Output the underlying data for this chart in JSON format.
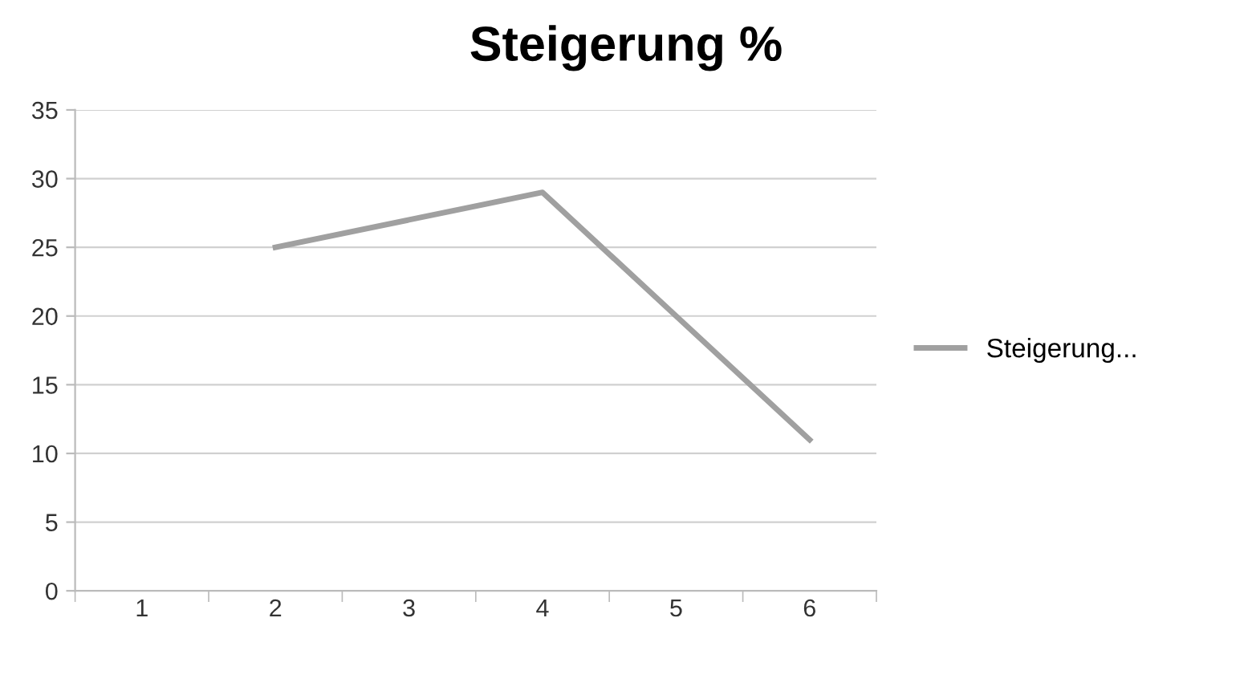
{
  "chart_data": {
    "type": "line",
    "title": "Steigerung %",
    "categories": [
      "1",
      "2",
      "3",
      "4",
      "5",
      "6"
    ],
    "series": [
      {
        "name": "Steigerung...",
        "color": "#a0a0a0",
        "values": [
          null,
          25,
          27,
          29,
          20,
          11
        ]
      }
    ],
    "ylim": [
      0,
      35
    ],
    "yticks": [
      0,
      5,
      10,
      15,
      20,
      25,
      30,
      35
    ],
    "grid": "y",
    "legend": "right",
    "marker": "none",
    "line_style": "solid"
  }
}
